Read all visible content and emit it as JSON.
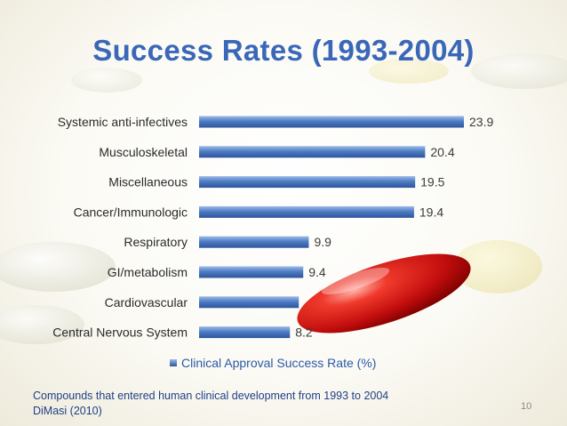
{
  "slide": {
    "title": "Success Rates (1993-2004)",
    "footnote_line1": "Compounds that entered human clinical development from 1993 to 2004",
    "footnote_line2": "DiMasi (2010)",
    "page_number": "10"
  },
  "chart_data": {
    "type": "bar",
    "orientation": "horizontal",
    "title": "",
    "categories": [
      "Systemic anti-infectives",
      "Musculoskeletal",
      "Miscellaneous",
      "Cancer/Immunologic",
      "Respiratory",
      "GI/metabolism",
      "Cardiovascular",
      "Central Nervous System"
    ],
    "series": [
      {
        "name": "Clinical Approval Success Rate (%)",
        "values": [
          23.9,
          20.4,
          19.5,
          19.4,
          9.9,
          9.4,
          9.0,
          8.2
        ],
        "data_labels": [
          "23.9",
          "20.4",
          "19.5",
          "19.4",
          "9.9",
          "9.4",
          "",
          "8.2"
        ]
      }
    ],
    "xlim": [
      0,
      25
    ],
    "grid": false,
    "legend_position": "bottom",
    "colors": {
      "bar": "#3f6db4",
      "bar_highlight": "#9cbbe8",
      "label": "#3b3b3b",
      "category_label": "#2b2b2b",
      "title": "#3a67b8"
    }
  }
}
